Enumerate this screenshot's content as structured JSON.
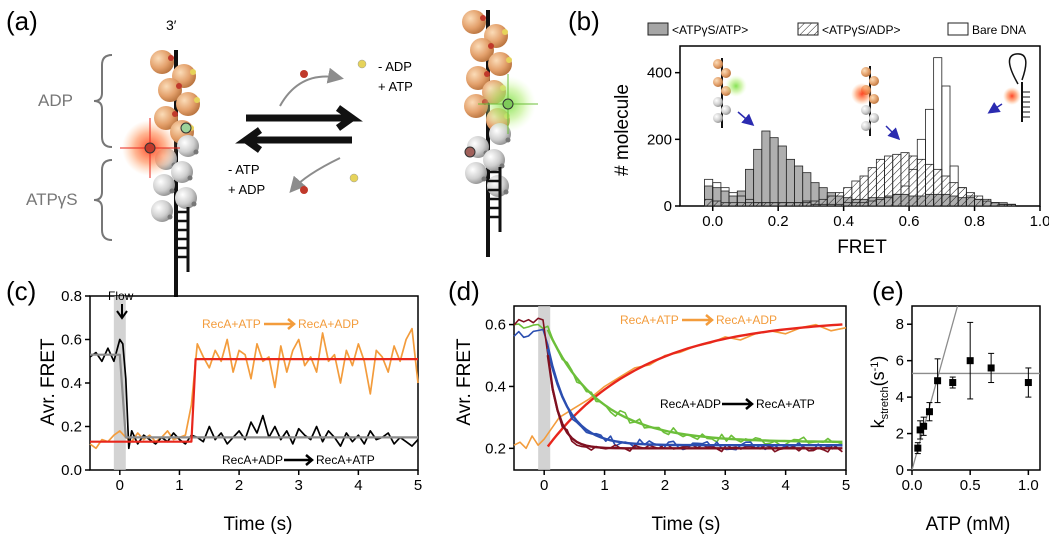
{
  "panel_labels": [
    "(a)",
    "(b)",
    "(c)",
    "(d)",
    "(e)"
  ],
  "panel_a": {
    "strand_label": "3′",
    "bracket_labels": [
      "ADP",
      "ATPγS"
    ],
    "top_reaction": [
      "- ADP",
      "+ ATP"
    ],
    "bottom_reaction": [
      "-  ATP",
      "+ ADP"
    ]
  },
  "colors": {
    "orange_monomer": "#e3a06b",
    "grey_monomer": "#c9c9c9",
    "adp_dot": "#c0392b",
    "atp_dot": "#e6d35a",
    "hist_fill_atp": "#a6a6a6",
    "trace_orange": "#f39c3c",
    "fit_red": "#e8261c",
    "trace_black": "#000000",
    "fit_grey": "#8c8c8c",
    "trace_green": "#6cbf3a",
    "trace_blue": "#2b4eb0",
    "trace_darkred": "#7f1020"
  },
  "chart_data": [
    {
      "id": "b",
      "type": "bar",
      "xlabel": "FRET",
      "ylabel": "# molecule",
      "xlim": [
        -0.1,
        1.0
      ],
      "ylim": [
        0,
        480
      ],
      "xticks": [
        0.0,
        0.2,
        0.4,
        0.6,
        0.8,
        1.0
      ],
      "yticks": [
        0,
        200,
        400
      ],
      "tick_labels_x": [
        "0.0",
        "0.2",
        "0.4",
        "0.6",
        "0.8",
        "1.0"
      ],
      "tick_labels_y": [
        "0",
        "200",
        "400"
      ],
      "legend_position": "top",
      "bin_width": 0.025,
      "bin_start": -0.025,
      "series": [
        {
          "name": "<ATPγS/ATP>",
          "style": "grey",
          "values": [
            60,
            55,
            45,
            30,
            45,
            110,
            170,
            225,
            205,
            180,
            140,
            120,
            100,
            70,
            55,
            40,
            30,
            25,
            20,
            20,
            25,
            25,
            30,
            35,
            35,
            30,
            30,
            35,
            35,
            35,
            30,
            25,
            25,
            20,
            15,
            10,
            10,
            5
          ]
        },
        {
          "name": "<ATPγS/ADP>",
          "style": "hatched",
          "values": [
            20,
            15,
            10,
            10,
            10,
            10,
            10,
            10,
            10,
            10,
            10,
            10,
            15,
            15,
            20,
            30,
            40,
            55,
            75,
            90,
            115,
            140,
            150,
            155,
            160,
            150,
            140,
            125,
            110,
            90,
            70,
            55,
            40,
            30,
            20,
            10,
            5,
            5
          ]
        },
        {
          "name": "Bare DNA",
          "style": "open",
          "values": [
            80,
            70,
            55,
            40,
            30,
            20,
            10,
            10,
            10,
            10,
            10,
            10,
            10,
            5,
            5,
            5,
            5,
            10,
            10,
            10,
            15,
            20,
            25,
            35,
            60,
            110,
            200,
            290,
            445,
            360,
            120,
            55,
            30,
            20,
            15,
            10,
            5,
            5
          ]
        }
      ]
    },
    {
      "id": "c",
      "type": "line",
      "xlabel": "Time (s)",
      "ylabel": "Avr. FRET",
      "xlim": [
        -0.5,
        5.0
      ],
      "ylim": [
        0.0,
        0.8
      ],
      "xticks": [
        0,
        1,
        2,
        3,
        4,
        5
      ],
      "yticks": [
        0.0,
        0.2,
        0.4,
        0.6,
        0.8
      ],
      "tick_labels_x": [
        "0",
        "1",
        "2",
        "3",
        "4",
        "5"
      ],
      "tick_labels_y": [
        "0.0",
        "0.2",
        "0.4",
        "0.6",
        "0.8"
      ],
      "flow_label": "Flow",
      "flow_time": 0.0,
      "annotations": [
        {
          "from": "RecA+ATP",
          "to": "RecA+ADP",
          "color": "orange"
        },
        {
          "from": "RecA+ADP",
          "to": "RecA+ATP",
          "color": "black"
        }
      ],
      "series": [
        {
          "name": "RecA+ATP → RecA+ADP trace",
          "color": "trace_orange",
          "x": [
            -0.5,
            -0.4,
            -0.3,
            -0.2,
            -0.1,
            0.0,
            0.1,
            0.2,
            0.3,
            0.4,
            0.5,
            0.6,
            0.7,
            0.8,
            0.9,
            1.0,
            1.1,
            1.2,
            1.3,
            1.4,
            1.5,
            1.6,
            1.7,
            1.8,
            1.9,
            2.0,
            2.1,
            2.2,
            2.3,
            2.4,
            2.5,
            2.6,
            2.7,
            2.8,
            2.9,
            3.0,
            3.1,
            3.2,
            3.3,
            3.4,
            3.5,
            3.6,
            3.7,
            3.8,
            3.9,
            4.0,
            4.1,
            4.2,
            4.3,
            4.4,
            4.5,
            4.6,
            4.7,
            4.8,
            4.9,
            5.0
          ],
          "y": [
            0.12,
            0.1,
            0.14,
            0.13,
            0.16,
            0.18,
            0.15,
            0.13,
            0.17,
            0.14,
            0.16,
            0.13,
            0.15,
            0.18,
            0.14,
            0.15,
            0.16,
            0.3,
            0.58,
            0.52,
            0.47,
            0.55,
            0.5,
            0.6,
            0.45,
            0.55,
            0.53,
            0.42,
            0.58,
            0.5,
            0.52,
            0.38,
            0.57,
            0.45,
            0.55,
            0.6,
            0.48,
            0.52,
            0.45,
            0.63,
            0.5,
            0.53,
            0.4,
            0.55,
            0.48,
            0.58,
            0.5,
            0.35,
            0.55,
            0.52,
            0.45,
            0.57,
            0.5,
            0.6,
            0.65,
            0.4
          ]
        },
        {
          "name": "RecA+ATP → RecA+ADP fit",
          "color": "fit_red",
          "x": [
            -0.5,
            1.2,
            1.27,
            5.0
          ],
          "y": [
            0.13,
            0.13,
            0.51,
            0.51
          ]
        },
        {
          "name": "RecA+ADP → RecA+ATP trace",
          "color": "trace_black",
          "x": [
            -0.5,
            -0.4,
            -0.3,
            -0.2,
            -0.1,
            0.0,
            0.05,
            0.1,
            0.15,
            0.2,
            0.3,
            0.4,
            0.5,
            0.6,
            0.7,
            0.8,
            0.9,
            1.0,
            1.1,
            1.2,
            1.3,
            1.4,
            1.5,
            1.6,
            1.7,
            1.8,
            1.9,
            2.0,
            2.1,
            2.2,
            2.3,
            2.4,
            2.5,
            2.6,
            2.7,
            2.8,
            2.9,
            3.0,
            3.1,
            3.2,
            3.3,
            3.4,
            3.5,
            3.6,
            3.7,
            3.8,
            3.9,
            4.0,
            4.1,
            4.2,
            4.3,
            4.4,
            4.5,
            4.6,
            4.7,
            4.8,
            4.9,
            5.0
          ],
          "y": [
            0.52,
            0.54,
            0.5,
            0.56,
            0.5,
            0.6,
            0.58,
            0.42,
            0.1,
            0.18,
            0.12,
            0.16,
            0.14,
            0.12,
            0.15,
            0.13,
            0.17,
            0.14,
            0.12,
            0.16,
            0.15,
            0.13,
            0.2,
            0.14,
            0.17,
            0.12,
            0.15,
            0.18,
            0.14,
            0.22,
            0.17,
            0.25,
            0.15,
            0.2,
            0.14,
            0.18,
            0.12,
            0.19,
            0.16,
            0.14,
            0.2,
            0.13,
            0.18,
            0.15,
            0.11,
            0.17,
            0.13,
            0.16,
            0.12,
            0.18,
            0.14,
            0.15,
            0.17,
            0.12,
            0.15,
            0.13,
            0.11,
            0.14
          ]
        },
        {
          "name": "RecA+ADP → RecA+ATP fit",
          "color": "fit_grey",
          "x": [
            -0.5,
            0.0,
            0.1,
            5.0
          ],
          "y": [
            0.53,
            0.53,
            0.15,
            0.15
          ]
        }
      ]
    },
    {
      "id": "d",
      "type": "line",
      "xlabel": "Time (s)",
      "ylabel": "Avr. FRET",
      "xlim": [
        -0.5,
        5.0
      ],
      "ylim": [
        0.13,
        0.66
      ],
      "xticks": [
        0,
        1,
        2,
        3,
        4,
        5
      ],
      "yticks": [
        0.2,
        0.4,
        0.6
      ],
      "tick_labels_x": [
        "0",
        "1",
        "2",
        "3",
        "4",
        "5"
      ],
      "tick_labels_y": [
        "0.2",
        "0.4",
        "0.6"
      ],
      "flow_time": 0.0,
      "annotations": [
        {
          "from": "RecA+ATP",
          "to": "RecA+ADP",
          "color": "orange"
        },
        {
          "from": "RecA+ADP",
          "to": "RecA+ATP",
          "color": "black"
        }
      ],
      "series": [
        {
          "name": "RecA+ATP → RecA+ADP trace",
          "color": "trace_orange",
          "x": [
            -0.5,
            -0.4,
            -0.3,
            -0.2,
            -0.1,
            0.0,
            0.25,
            0.5,
            0.75,
            1.0,
            1.25,
            1.5,
            1.75,
            2.0,
            2.25,
            2.5,
            2.75,
            3.0,
            3.25,
            3.5,
            3.75,
            4.0,
            4.25,
            4.5,
            4.75,
            5.0
          ],
          "y": [
            0.21,
            0.22,
            0.2,
            0.24,
            0.21,
            0.23,
            0.3,
            0.33,
            0.36,
            0.4,
            0.43,
            0.46,
            0.47,
            0.5,
            0.51,
            0.53,
            0.54,
            0.56,
            0.55,
            0.57,
            0.58,
            0.57,
            0.59,
            0.6,
            0.58,
            0.59
          ]
        },
        {
          "name": "RecA+ATP → RecA+ADP fit",
          "color": "fit_red",
          "model": "rise",
          "t0": 0.0,
          "y0": 0.19,
          "yinf": 0.62,
          "tau": 1.6
        },
        {
          "name": "green trace",
          "color": "trace_green",
          "model": "decay_noisy",
          "t0": 0.0,
          "pre": 0.6,
          "y0": 0.61,
          "yinf": 0.22,
          "tau": 0.85,
          "noise": 0.015
        },
        {
          "name": "blue trace",
          "color": "trace_blue",
          "model": "decay_noisy",
          "t0": 0.0,
          "pre": 0.57,
          "y0": 0.58,
          "yinf": 0.21,
          "tau": 0.35,
          "noise": 0.015
        },
        {
          "name": "dark red trace",
          "color": "trace_darkred",
          "model": "decay_noisy",
          "t0": 0.0,
          "pre": 0.61,
          "y0": 0.62,
          "yinf": 0.2,
          "tau": 0.18,
          "noise": 0.012
        },
        {
          "name": "green fit",
          "color": "trace_green",
          "model": "decay",
          "t0": 0.0,
          "y0": 0.61,
          "yinf": 0.22,
          "tau": 0.85
        },
        {
          "name": "blue fit",
          "color": "trace_blue",
          "model": "decay",
          "t0": 0.0,
          "y0": 0.58,
          "yinf": 0.21,
          "tau": 0.35
        },
        {
          "name": "dark red fit",
          "color": "trace_darkred",
          "model": "decay",
          "t0": 0.0,
          "y0": 0.62,
          "yinf": 0.2,
          "tau": 0.18
        }
      ]
    },
    {
      "id": "e",
      "type": "scatter",
      "xlabel": "ATP (mM)",
      "ylabel": "k",
      "ylabel_sub": "stretch",
      "ylabel_unit": "(s",
      "ylabel_sup": "-1",
      "ylabel_close": ")",
      "xlim": [
        0.0,
        1.1
      ],
      "ylim": [
        0.0,
        9.0
      ],
      "xticks": [
        0.0,
        0.5,
        1.0
      ],
      "yticks": [
        0,
        2,
        4,
        6,
        8
      ],
      "tick_labels_x": [
        "0.0",
        "0.5",
        "1.0"
      ],
      "tick_labels_y": [
        "0",
        "2",
        "4",
        "6",
        "8"
      ],
      "points": [
        {
          "x": 0.05,
          "y": 1.2,
          "err": 0.3
        },
        {
          "x": 0.07,
          "y": 2.2,
          "err": 0.5
        },
        {
          "x": 0.1,
          "y": 2.4,
          "err": 0.5
        },
        {
          "x": 0.15,
          "y": 3.2,
          "err": 0.5
        },
        {
          "x": 0.22,
          "y": 4.9,
          "err": 1.2
        },
        {
          "x": 0.35,
          "y": 4.8,
          "err": 0.3
        },
        {
          "x": 0.5,
          "y": 6.0,
          "err": 2.1
        },
        {
          "x": 0.68,
          "y": 5.6,
          "err": 0.8
        },
        {
          "x": 1.0,
          "y": 4.8,
          "err": 0.8
        }
      ],
      "plateau": 5.3,
      "initial_slope": 23.0
    }
  ]
}
